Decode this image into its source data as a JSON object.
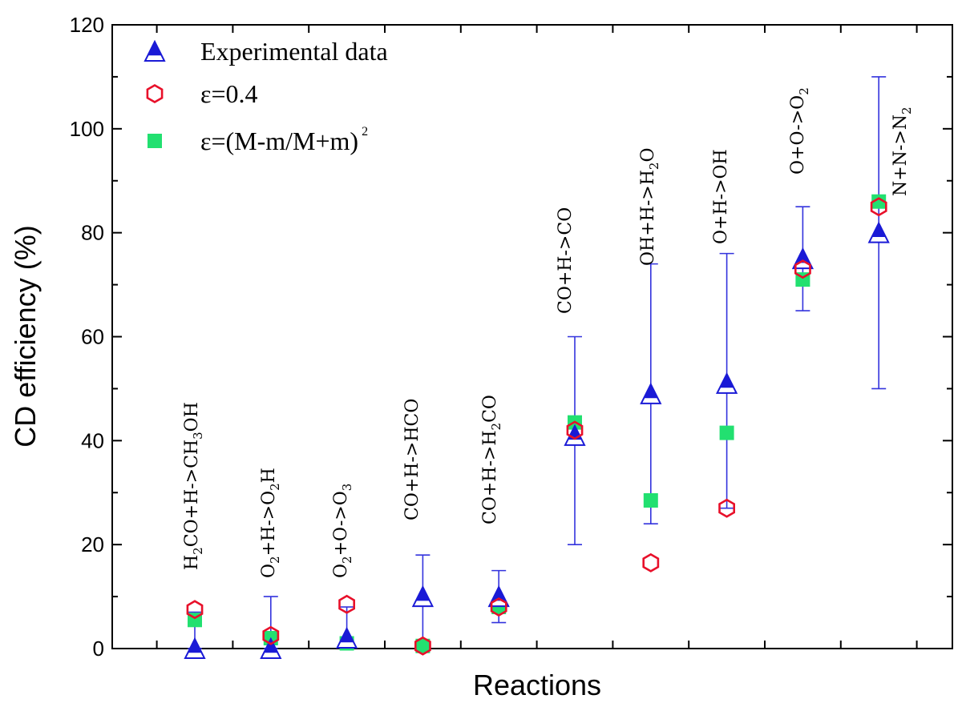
{
  "chart_data": {
    "type": "scatter",
    "xlabel": "Reactions",
    "ylabel": "CD efficiency (%)",
    "ylim": [
      0,
      120
    ],
    "yticks": [
      0,
      20,
      40,
      60,
      80,
      100,
      120
    ],
    "grid": false,
    "legend_position": "top-left",
    "legend": [
      {
        "key": "exp",
        "name": "Experimental data",
        "marker": "triangle"
      },
      {
        "key": "e04",
        "name": "ε=0.4",
        "marker": "hexagon"
      },
      {
        "key": "emass",
        "name": "ε=(M-m/M+m)",
        "name_sup": "2",
        "marker": "square"
      }
    ],
    "categories": [
      {
        "parts": [
          [
            "H",
            ""
          ],
          [
            "2",
            "sub"
          ],
          [
            "CO+H->CH",
            ""
          ],
          [
            "3",
            "sub"
          ],
          [
            "OH",
            ""
          ]
        ]
      },
      {
        "parts": [
          [
            "O",
            ""
          ],
          [
            "2",
            "sub"
          ],
          [
            "+H->O",
            ""
          ],
          [
            "2",
            "sub"
          ],
          [
            "H",
            ""
          ]
        ]
      },
      {
        "parts": [
          [
            "O",
            ""
          ],
          [
            "2",
            "sub"
          ],
          [
            "+O->O",
            ""
          ],
          [
            "3",
            "sub"
          ]
        ]
      },
      {
        "parts": [
          [
            "CO+H->HCO",
            ""
          ]
        ]
      },
      {
        "parts": [
          [
            "CO+H->H",
            ""
          ],
          [
            "2",
            "sub"
          ],
          [
            "CO",
            ""
          ]
        ]
      },
      {
        "parts": [
          [
            "CO+H->CO",
            ""
          ]
        ]
      },
      {
        "parts": [
          [
            "OH+H->H",
            ""
          ],
          [
            "2",
            "sub"
          ],
          [
            "O",
            ""
          ]
        ]
      },
      {
        "parts": [
          [
            "O+H->OH",
            ""
          ]
        ]
      },
      {
        "parts": [
          [
            "O+O->O",
            ""
          ],
          [
            "2",
            "sub"
          ]
        ]
      },
      {
        "parts": [
          [
            "N+N->N",
            ""
          ],
          [
            "2",
            "sub"
          ]
        ]
      }
    ],
    "series": [
      {
        "key": "exp",
        "name": "Experimental data",
        "values": [
          0,
          0,
          2,
          10,
          10,
          41,
          49,
          51,
          75,
          80
        ],
        "err_low": [
          0,
          0,
          0,
          0,
          5,
          20,
          24,
          27,
          65,
          50
        ],
        "err_high": [
          7,
          10,
          8,
          18,
          15,
          60,
          74,
          76,
          85,
          110
        ]
      },
      {
        "key": "e04",
        "name": "ε=0.4",
        "values": [
          7.5,
          2.5,
          8.5,
          0.5,
          8,
          42,
          16.5,
          27,
          73,
          85
        ]
      },
      {
        "key": "emass",
        "name": "ε=(M-m/M+m)2",
        "values": [
          5.5,
          2,
          1,
          0.5,
          8,
          43.5,
          28.5,
          41.5,
          71,
          86
        ]
      }
    ],
    "colors": {
      "triangle_fill": "#1a1ad6",
      "error_bar": "#3333dd",
      "hexagon": "#e8102a",
      "square": "#22e070"
    }
  }
}
